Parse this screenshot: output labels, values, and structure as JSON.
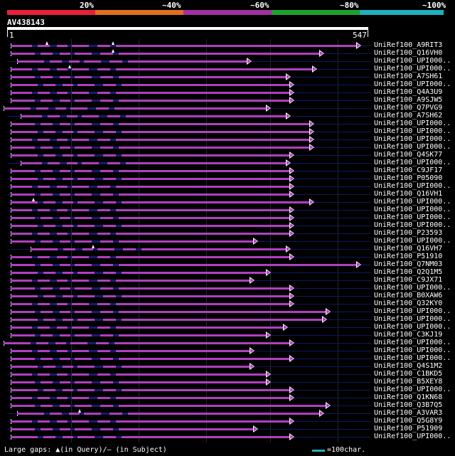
{
  "legend": {
    "labels": [
      "20%",
      "~40%",
      "~60%",
      "~80%",
      "~100%"
    ],
    "colors": [
      "#e8203a",
      "#e07020",
      "#a030a0",
      "#20a030",
      "#20b0c0"
    ]
  },
  "query": {
    "title": "AV438143",
    "ruler_start": "1",
    "ruler_end": "547"
  },
  "hits": [
    {
      "name": "UniRef100_A9RIT3",
      "start": 5,
      "end": 540,
      "gaps": [
        60,
        160
      ]
    },
    {
      "name": "UniRef100_Q16VH0",
      "start": 5,
      "end": 480,
      "gaps": [
        160
      ]
    },
    {
      "name": "UniRef100_UPI000..",
      "start": 15,
      "end": 370,
      "gaps": []
    },
    {
      "name": "UniRef100_UPI000..",
      "start": 5,
      "end": 470,
      "gaps": [
        95
      ]
    },
    {
      "name": "UniRef100_A7SH61",
      "start": 5,
      "end": 430,
      "gaps": []
    },
    {
      "name": "UniRef100_UPI000..",
      "start": 5,
      "end": 435,
      "gaps": []
    },
    {
      "name": "UniRef100_Q4A3U9",
      "start": 5,
      "end": 435,
      "gaps": []
    },
    {
      "name": "UniRef100_A9SJW5",
      "start": 5,
      "end": 435,
      "gaps": []
    },
    {
      "name": "UniRef100_Q7PVG9",
      "start": -5,
      "end": 400,
      "gaps": []
    },
    {
      "name": "UniRef100_A7SH62",
      "start": 20,
      "end": 430,
      "gaps": []
    },
    {
      "name": "UniRef100_UPI000..",
      "start": 5,
      "end": 465,
      "gaps": []
    },
    {
      "name": "UniRef100_UPI000..",
      "start": 5,
      "end": 465,
      "gaps": []
    },
    {
      "name": "UniRef100_UPI000..",
      "start": 5,
      "end": 465,
      "gaps": []
    },
    {
      "name": "UniRef100_UPI000..",
      "start": 5,
      "end": 465,
      "gaps": []
    },
    {
      "name": "UniRef100_Q4SK77",
      "start": 5,
      "end": 435,
      "gaps": []
    },
    {
      "name": "UniRef100_UPI000..",
      "start": 20,
      "end": 430,
      "gaps": []
    },
    {
      "name": "UniRef100_C9JF17",
      "start": 5,
      "end": 435,
      "gaps": []
    },
    {
      "name": "UniRef100_P05090",
      "start": 5,
      "end": 435,
      "gaps": []
    },
    {
      "name": "UniRef100_UPI000..",
      "start": 5,
      "end": 435,
      "gaps": []
    },
    {
      "name": "UniRef100_Q16VH1",
      "start": 5,
      "end": 435,
      "gaps": []
    },
    {
      "name": "UniRef100_UPI000..",
      "start": 5,
      "end": 465,
      "gaps": [
        40
      ]
    },
    {
      "name": "UniRef100_UPI000..",
      "start": 5,
      "end": 435,
      "gaps": []
    },
    {
      "name": "UniRef100_UPI000..",
      "start": 5,
      "end": 435,
      "gaps": []
    },
    {
      "name": "UniRef100_UPI000..",
      "start": 5,
      "end": 435,
      "gaps": []
    },
    {
      "name": "UniRef100_P23593",
      "start": 5,
      "end": 435,
      "gaps": []
    },
    {
      "name": "UniRef100_UPI000..",
      "start": 5,
      "end": 380,
      "gaps": []
    },
    {
      "name": "UniRef100_Q16VH7",
      "start": 35,
      "end": 430,
      "gaps": [
        130
      ]
    },
    {
      "name": "UniRef100_P51910",
      "start": 5,
      "end": 435,
      "gaps": []
    },
    {
      "name": "UniRef100_Q7NM03",
      "start": 5,
      "end": 555,
      "gaps": []
    },
    {
      "name": "UniRef100_Q2Q1M5",
      "start": 5,
      "end": 400,
      "gaps": []
    },
    {
      "name": "UniRef100_C9JX71",
      "start": 5,
      "end": 375,
      "gaps": []
    },
    {
      "name": "UniRef100_UPI000..",
      "start": 5,
      "end": 435,
      "gaps": []
    },
    {
      "name": "UniRef100_B0XAW6",
      "start": 5,
      "end": 435,
      "gaps": []
    },
    {
      "name": "UniRef100_Q32KY0",
      "start": 5,
      "end": 435,
      "gaps": []
    },
    {
      "name": "UniRef100_UPI000..",
      "start": 5,
      "end": 490,
      "gaps": []
    },
    {
      "name": "UniRef100_UPI000..",
      "start": 5,
      "end": 485,
      "gaps": []
    },
    {
      "name": "UniRef100_UPI000..",
      "start": 5,
      "end": 425,
      "gaps": []
    },
    {
      "name": "UniRef100_C3KJ19",
      "start": 5,
      "end": 400,
      "gaps": []
    },
    {
      "name": "UniRef100_UPI000..",
      "start": -5,
      "end": 435,
      "gaps": []
    },
    {
      "name": "UniRef100_UPI000..",
      "start": 5,
      "end": 375,
      "gaps": []
    },
    {
      "name": "UniRef100_UPI000..",
      "start": 5,
      "end": 435,
      "gaps": []
    },
    {
      "name": "UniRef100_Q4S1M2",
      "start": 5,
      "end": 375,
      "gaps": []
    },
    {
      "name": "UniRef100_C1BKD5",
      "start": 5,
      "end": 400,
      "gaps": []
    },
    {
      "name": "UniRef100_B5XEY8",
      "start": 5,
      "end": 400,
      "gaps": []
    },
    {
      "name": "UniRef100_UPI000..",
      "start": 5,
      "end": 435,
      "gaps": []
    },
    {
      "name": "UniRef100_Q1KN68",
      "start": 5,
      "end": 435,
      "gaps": []
    },
    {
      "name": "UniRef100_Q3B7Q5",
      "start": 5,
      "end": 490,
      "gaps": []
    },
    {
      "name": "UniRef100_A3VAR3",
      "start": 15,
      "end": 480,
      "gaps": [
        110
      ]
    },
    {
      "name": "UniRef100_Q5G8Y9",
      "start": 5,
      "end": 435,
      "gaps": []
    },
    {
      "name": "UniRef100_P51909",
      "start": 5,
      "end": 380,
      "gaps": []
    },
    {
      "name": "UniRef100_UPI000..",
      "start": 5,
      "end": 435,
      "gaps": []
    }
  ],
  "footer": {
    "gaps_text": "Large gaps: ▲(in Query)/– (in Subject)",
    "scale_text": "=100char."
  }
}
